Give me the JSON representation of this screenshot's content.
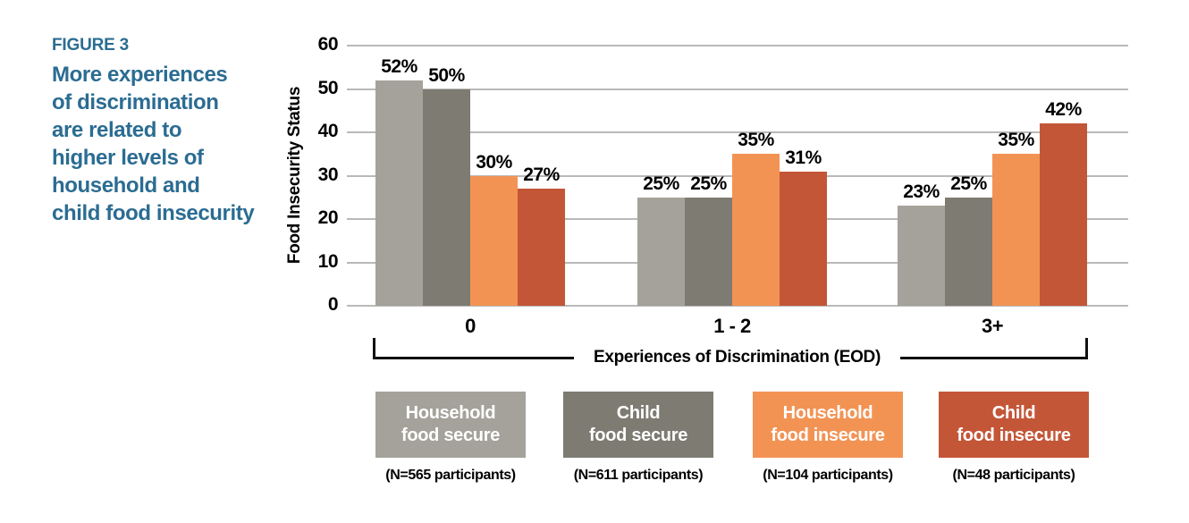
{
  "figure": {
    "label": "FIGURE 3",
    "heading": "More experiences\nof discrimination\nare related to\nhigher levels of\nhousehold and\nchild food insecurity",
    "accent_color": "#2B6C92"
  },
  "chart_data": {
    "type": "bar",
    "title": "More experiences of discrimination are related to higher levels of household and child food insecurity",
    "categories": [
      "0",
      "1 - 2",
      "3+"
    ],
    "series": [
      {
        "name": "Household food secure",
        "label_line1": "Household",
        "label_line2": "food secure",
        "n_label": "(N=565 participants)",
        "color": "#A4A29A",
        "values": [
          52,
          25,
          23
        ]
      },
      {
        "name": "Child food secure",
        "label_line1": "Child",
        "label_line2": "food secure",
        "n_label": "(N=611 participants)",
        "color": "#7D7B72",
        "values": [
          50,
          25,
          25
        ]
      },
      {
        "name": "Household food insecure",
        "label_line1": "Household",
        "label_line2": "food insecure",
        "n_label": "(N=104 participants)",
        "color": "#F29354",
        "values": [
          30,
          35,
          35
        ]
      },
      {
        "name": "Child food insecure",
        "label_line1": "Child",
        "label_line2": "food insecure",
        "n_label": "(N=48 participants)",
        "color": "#C45638",
        "values": [
          27,
          31,
          42
        ]
      }
    ],
    "value_label_suffix": "%",
    "xlabel": "Experiences of Discrimination (EOD)",
    "ylabel": "Food Insecurity Status",
    "ylim": [
      0,
      60
    ],
    "yticks": [
      0,
      10,
      20,
      30,
      40,
      50,
      60
    ],
    "grid": "horizontal",
    "legend_position": "bottom",
    "gridline_color": "#b9b9b9"
  }
}
